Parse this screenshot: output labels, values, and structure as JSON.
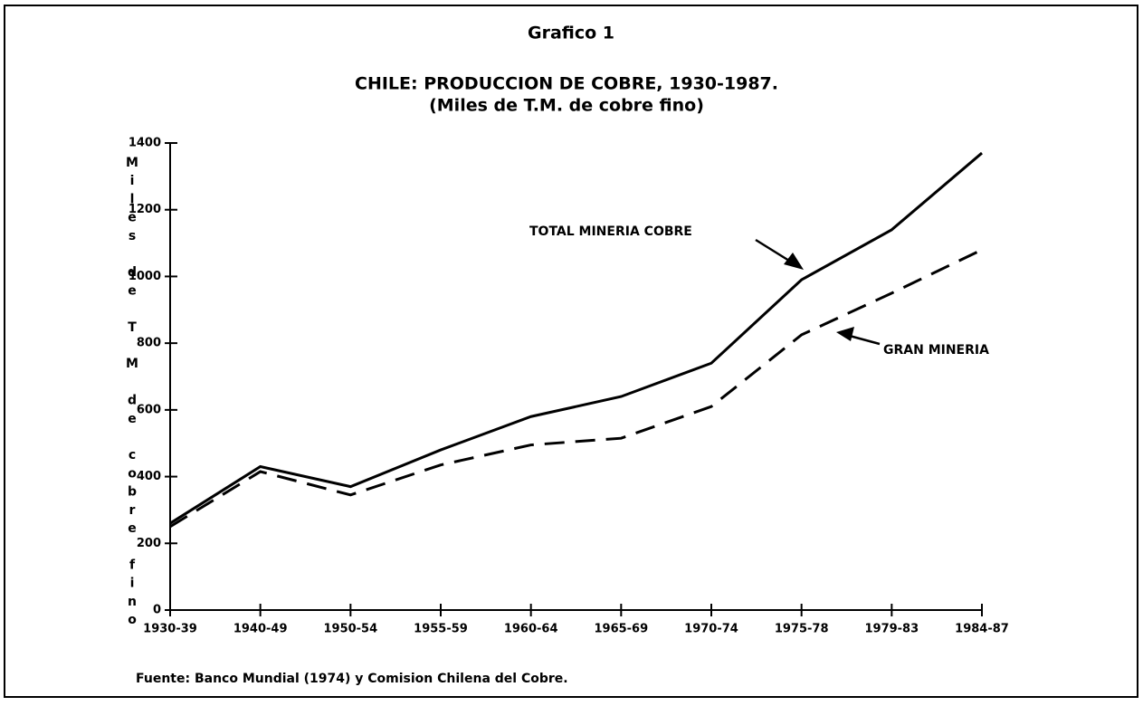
{
  "chart_data": {
    "type": "line",
    "title": "Grafico 1",
    "subtitle": "CHILE: PRODUCCION DE COBRE, 1930-1987.",
    "subtitle2": "(Miles de T.M. de cobre fino)",
    "y_label": "Miles de T M de cobre fino",
    "source": "Fuente: Banco Mundial (1974) y Comision Chilena del Cobre.",
    "categories": [
      "1930-39",
      "1940-49",
      "1950-54",
      "1955-59",
      "1960-64",
      "1965-69",
      "1970-74",
      "1975-78",
      "1979-83",
      "1984-87"
    ],
    "series": [
      {
        "name": "TOTAL MINERIA COBRE",
        "color": "#000000",
        "dashed": false,
        "values": [
          260,
          430,
          370,
          480,
          580,
          640,
          740,
          990,
          1140,
          1370
        ]
      },
      {
        "name": "GRAN MINERIA",
        "color": "#000000",
        "dashed": true,
        "values": [
          250,
          415,
          345,
          435,
          495,
          515,
          610,
          825,
          950,
          1080
        ]
      }
    ],
    "ylim": [
      0,
      1400
    ],
    "yticks": [
      0,
      200,
      400,
      600,
      800,
      1000,
      1200,
      1400
    ],
    "grid": false
  }
}
